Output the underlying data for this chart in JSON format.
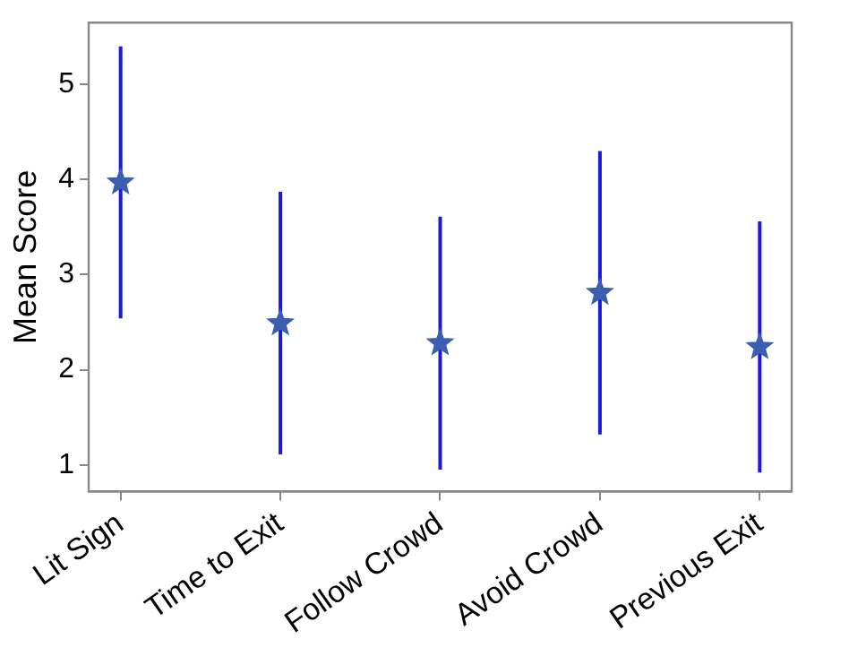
{
  "chart_data": {
    "type": "scatter",
    "ylabel": "Mean Score",
    "categories": [
      "Lit Sign",
      "Time to Exit",
      "Follow Crowd",
      "Avoid Crowd",
      "Previous Exit"
    ],
    "series": [
      {
        "color": "#3a5fb0",
        "values": [
          3.97,
          2.49,
          2.28,
          2.81,
          2.24
        ],
        "errors": [
          1.43,
          1.38,
          1.33,
          1.49,
          1.32
        ]
      }
    ],
    "ylim": [
      0.72,
      5.65
    ],
    "yticks": [
      1,
      2,
      3,
      4,
      5
    ],
    "grid": false,
    "legend": false,
    "marker": "star"
  }
}
